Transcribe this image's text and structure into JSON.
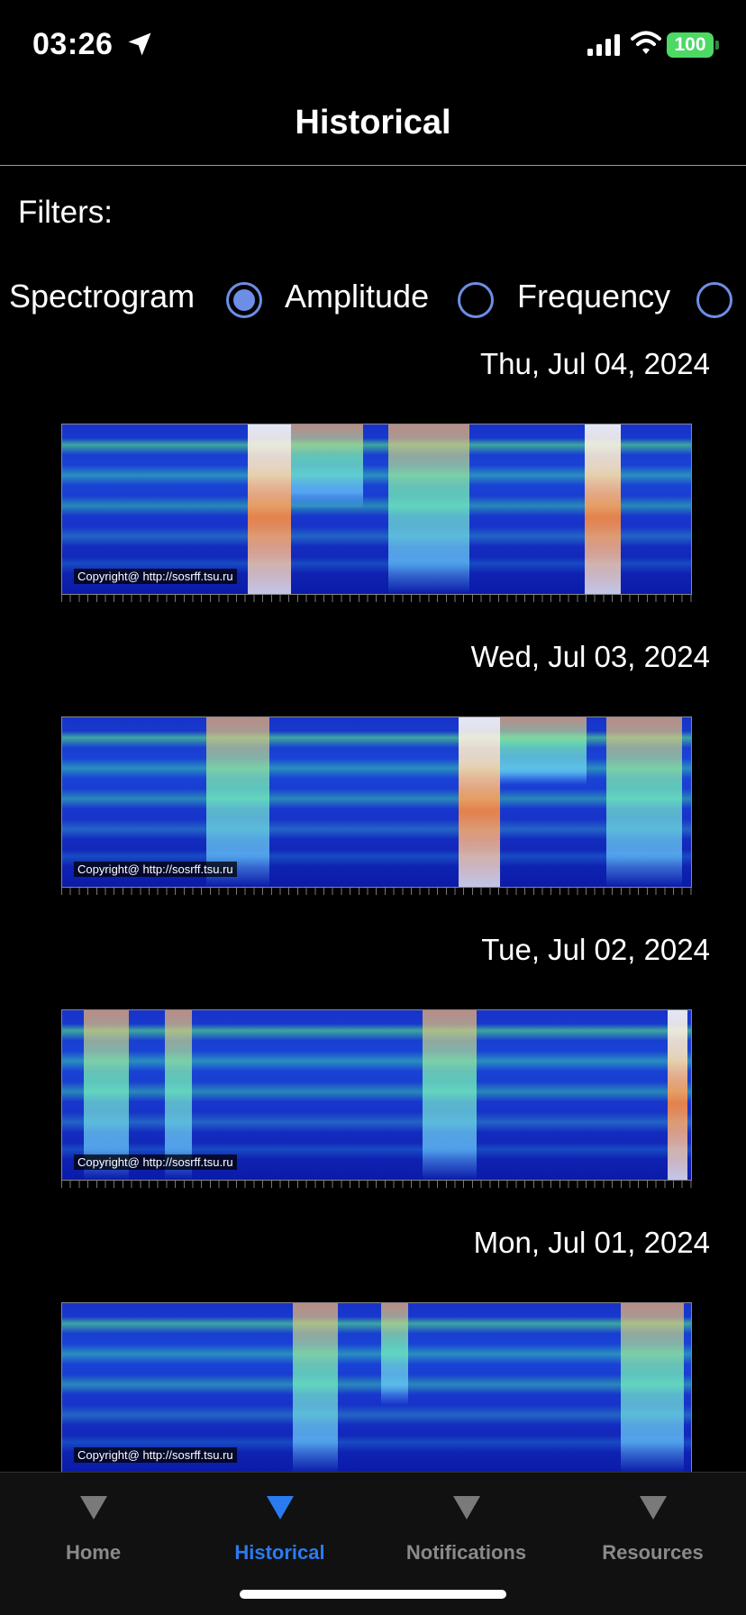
{
  "status_bar": {
    "time": "03:26",
    "battery": "100",
    "battery_color": "#4cd964"
  },
  "header": {
    "title": "Historical"
  },
  "filters": {
    "label": "Filters:",
    "options": [
      {
        "label": "Spectrogram",
        "checked": true
      },
      {
        "label": "Amplitude",
        "checked": false
      },
      {
        "label": "Frequency",
        "checked": false
      }
    ],
    "accent": "#6d8ee6"
  },
  "entries": [
    {
      "date": "Thu, Jul 04, 2024",
      "copyright": "Copyright@ http://sosrff.tsu.ru"
    },
    {
      "date": "Wed, Jul 03, 2024",
      "copyright": "Copyright@ http://sosrff.tsu.ru"
    },
    {
      "date": "Tue, Jul 02, 2024",
      "copyright": "Copyright@ http://sosrff.tsu.ru"
    },
    {
      "date": "Mon, Jul 01, 2024",
      "copyright": "Copyright@ http://sosrff.tsu.ru"
    }
  ],
  "tab_bar": {
    "tabs": [
      {
        "label": "Home",
        "icon": "triangle-down-icon",
        "active": false
      },
      {
        "label": "Historical",
        "icon": "triangle-down-icon",
        "active": true
      },
      {
        "label": "Notifications",
        "icon": "triangle-down-icon",
        "active": false
      },
      {
        "label": "Resources",
        "icon": "triangle-down-icon",
        "active": false
      }
    ],
    "active_color": "#2b7bf0",
    "inactive_color": "#8a8a8a"
  }
}
